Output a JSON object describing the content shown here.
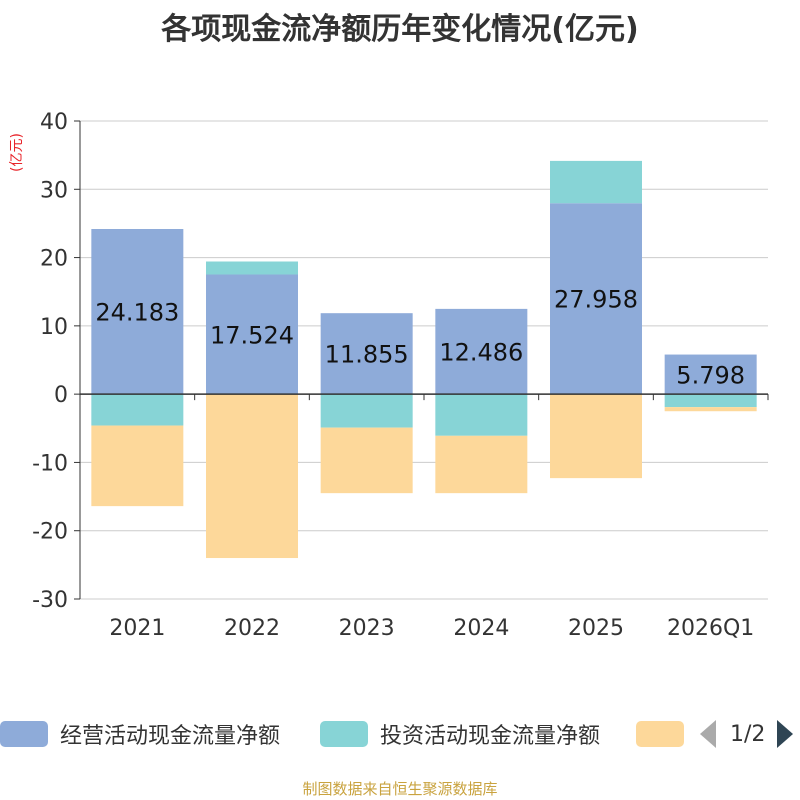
{
  "chart_data": {
    "type": "bar",
    "stacked": true,
    "title": "各项现金流净额历年变化情况(亿元)",
    "ylabel": "(亿元)",
    "xlabel": "",
    "ylim": [
      -30,
      40
    ],
    "yticks": [
      40,
      30,
      20,
      10,
      0,
      -10,
      -20,
      -30
    ],
    "categories": [
      "2021",
      "2022",
      "2023",
      "2024",
      "2025",
      "2026Q1"
    ],
    "series": [
      {
        "name": "经营活动现金流量净额",
        "color": "#8eabd9",
        "values": [
          24.183,
          17.524,
          11.855,
          12.486,
          27.958,
          5.798
        ],
        "labels": [
          "24.183",
          "17.524",
          "11.855",
          "12.486",
          "27.958",
          "5.798"
        ]
      },
      {
        "name": "投资活动现金流量净额",
        "color": "#87d4d6",
        "values_pos": [
          0,
          1.9,
          0,
          0,
          6.2,
          0
        ],
        "values_neg": [
          -4.6,
          0,
          -4.9,
          -6.1,
          0,
          -1.9
        ]
      },
      {
        "name": "",
        "color": "#fdd89a",
        "values_neg": [
          -11.8,
          -24.0,
          -9.6,
          -8.4,
          -12.3,
          -0.6
        ]
      }
    ],
    "legend": {
      "position": "bottom",
      "page": "1/2"
    }
  },
  "source": "制图数据来自恒生聚源数据库"
}
